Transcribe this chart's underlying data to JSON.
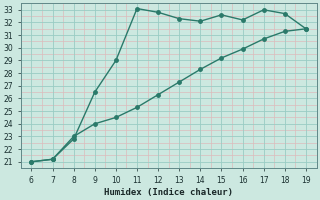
{
  "xlabel": "Humidex (Indice chaleur)",
  "bg_color": "#cce8e0",
  "grid_major_color": "#99ccc4",
  "grid_minor_color": "#ddbbbb",
  "line_color": "#2a7a6a",
  "xlim": [
    5.5,
    19.5
  ],
  "ylim": [
    20.5,
    33.5
  ],
  "xticks": [
    6,
    7,
    8,
    9,
    10,
    11,
    12,
    13,
    14,
    15,
    16,
    17,
    18,
    19
  ],
  "yticks": [
    21,
    22,
    23,
    24,
    25,
    26,
    27,
    28,
    29,
    30,
    31,
    32,
    33
  ],
  "upper_x": [
    6,
    7,
    7,
    8,
    9,
    10,
    11,
    12,
    13,
    14,
    15,
    16,
    17,
    18,
    19
  ],
  "upper_y": [
    21.0,
    21.2,
    21.2,
    22.8,
    26.5,
    29.0,
    33.1,
    32.8,
    32.3,
    32.1,
    32.6,
    32.2,
    33.0,
    32.7,
    31.5
  ],
  "lower_x": [
    6,
    7,
    8,
    9,
    10,
    11,
    12,
    13,
    14,
    15,
    16,
    17,
    18,
    19
  ],
  "lower_y": [
    21.0,
    21.2,
    23.0,
    24.0,
    24.5,
    25.3,
    26.3,
    27.3,
    28.3,
    29.2,
    29.9,
    30.7,
    31.3,
    31.5
  ],
  "marker_size": 2.5,
  "line_width": 1.0,
  "tick_fontsize": 5.5,
  "xlabel_fontsize": 6.5
}
